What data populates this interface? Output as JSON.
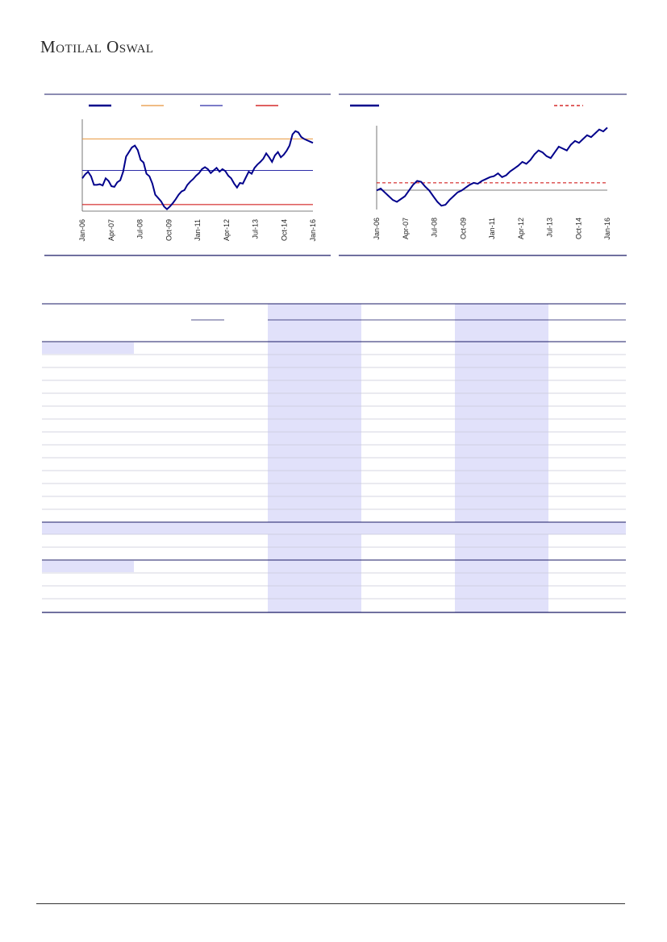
{
  "header": {
    "brand": "Motilal Oswal"
  },
  "charts": [
    {
      "chart_data": {
        "type": "line",
        "x_tick_labels": [
          "Jan-06",
          "Apr-07",
          "Jul-08",
          "Oct-09",
          "Jan-11",
          "Apr-12",
          "Jul-13",
          "Oct-14",
          "Jan-16"
        ],
        "series": [
          {
            "values": [
              0.3,
              0.36,
              0.4,
              0.33,
              0.2,
              0.2,
              0.21,
              0.19,
              0.3,
              0.26,
              0.18,
              0.17,
              0.24,
              0.27,
              0.4,
              0.63,
              0.7,
              0.77,
              0.8,
              0.73,
              0.58,
              0.54,
              0.37,
              0.33,
              0.22,
              0.05,
              0.0,
              -0.05,
              -0.13,
              -0.17,
              -0.13,
              -0.08,
              -0.02,
              0.05,
              0.1,
              0.12,
              0.2,
              0.25,
              0.29,
              0.34,
              0.38,
              0.44,
              0.47,
              0.44,
              0.38,
              0.42,
              0.46,
              0.4,
              0.44,
              0.41,
              0.34,
              0.3,
              0.22,
              0.16,
              0.23,
              0.22,
              0.31,
              0.4,
              0.37,
              0.46,
              0.51,
              0.55,
              0.6,
              0.68,
              0.62,
              0.55,
              0.65,
              0.7,
              0.62,
              0.66,
              0.72,
              0.8,
              0.97,
              1.02,
              1.0,
              0.93,
              0.9,
              0.88,
              0.86,
              0.84
            ]
          },
          {
            "values": [
              0.9
            ]
          },
          {
            "values": [
              0.42
            ]
          },
          {
            "values": [
              -0.1
            ]
          }
        ],
        "legend": {
          "placement": "top",
          "colors": [
            "#00008b",
            "#e8943a",
            "#2c2ca8",
            "#cc0000"
          ]
        }
      }
    },
    {
      "chart_data": {
        "type": "line",
        "x_tick_labels": [
          "Jan-06",
          "Apr-07",
          "Jul-08",
          "Oct-09",
          "Jan-11",
          "Apr-12",
          "Jul-13",
          "Oct-14",
          "Jan-16"
        ],
        "series": [
          {
            "values": [
              0.2,
              0.3,
              0.1,
              -0.1,
              -0.3,
              -0.4,
              -0.25,
              -0.1,
              0.2,
              0.5,
              0.7,
              0.65,
              0.4,
              0.2,
              -0.1,
              -0.4,
              -0.6,
              -0.55,
              -0.3,
              -0.1,
              0.1,
              0.2,
              0.35,
              0.5,
              0.6,
              0.55,
              0.7,
              0.8,
              0.9,
              0.95,
              1.1,
              0.9,
              1.0,
              1.2,
              1.35,
              1.5,
              1.7,
              1.6,
              1.8,
              2.1,
              2.3,
              2.2,
              2.0,
              1.9,
              2.2,
              2.5,
              2.4,
              2.3,
              2.6,
              2.8,
              2.7,
              2.9,
              3.1,
              3.0,
              3.2,
              3.4,
              3.3,
              3.5
            ]
          },
          {
            "values": [
              0.6
            ]
          }
        ],
        "legend": {
          "placement": "top",
          "colors": [
            "#00008b",
            "#cc0000"
          ]
        }
      }
    }
  ],
  "table": {
    "colors": {
      "band": "#e1e1fa",
      "rule_strong": "#1a1a66",
      "rule_light": "#c8c8d8"
    }
  }
}
